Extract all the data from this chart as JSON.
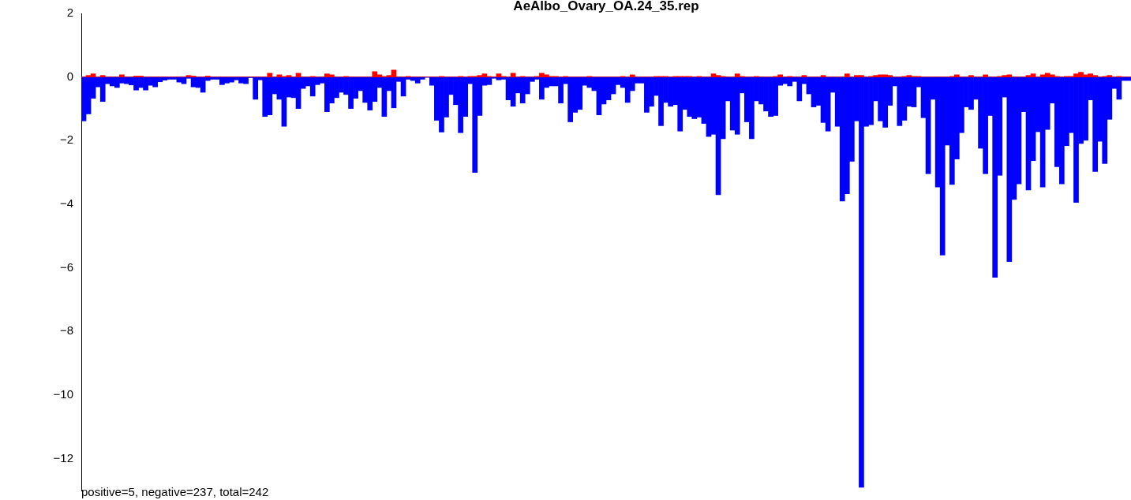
{
  "chart_data": {
    "type": "bar",
    "title": "AeAlbo_Ovary_OA.24_35.rep",
    "annotations": [
      "positive=5, negative=237, total=242"
    ],
    "categories": [
      null,
      null,
      null,
      null,
      null,
      null,
      null,
      null,
      null,
      null,
      null,
      null,
      null,
      null,
      null,
      null,
      null,
      null,
      null,
      null,
      null,
      null,
      null,
      null,
      null,
      null,
      null,
      null,
      null,
      null,
      null,
      null,
      null,
      null,
      null,
      null,
      null,
      null,
      null,
      null,
      null,
      null,
      null,
      null,
      null,
      null,
      null,
      null,
      null,
      null,
      null,
      null,
      null,
      null,
      null,
      null,
      null,
      null,
      null,
      null,
      null,
      null,
      null,
      null,
      null,
      null,
      null,
      null,
      null,
      null,
      null,
      null,
      null,
      null,
      null,
      null,
      null,
      null,
      null,
      null,
      null,
      null,
      null,
      null,
      null,
      null,
      null,
      null,
      null,
      null,
      null,
      null,
      null,
      null,
      null,
      null,
      null,
      null,
      null,
      null,
      null,
      null,
      null,
      null,
      null,
      null,
      null,
      null,
      null,
      null,
      null,
      null,
      null,
      null,
      null,
      null,
      null,
      null,
      null,
      null,
      null,
      null,
      null,
      null,
      null,
      null,
      null,
      null,
      null,
      null,
      null,
      null,
      null,
      null,
      null,
      null,
      null,
      null,
      null,
      null,
      null,
      null,
      null,
      null,
      null,
      null,
      null,
      null,
      null,
      null,
      null,
      null,
      null,
      null,
      null,
      null,
      null,
      null,
      null,
      null,
      null,
      null,
      null,
      null,
      null,
      null,
      null,
      null,
      null,
      null,
      null,
      null,
      null,
      null,
      null,
      null,
      null,
      null,
      null,
      null,
      null,
      null,
      null,
      null,
      null,
      null,
      null,
      null,
      null,
      null,
      null,
      null,
      null,
      null,
      null,
      null,
      null,
      null,
      null,
      null,
      null,
      null,
      null,
      null,
      null,
      null,
      null,
      null,
      null,
      null,
      null,
      null,
      null,
      null,
      null,
      null,
      null,
      null,
      null,
      null
    ],
    "series": [
      {
        "color": "#ff0000",
        "values": [
          0,
          0.05,
          0.1,
          0,
          0.05,
          0,
          0,
          0,
          0.07,
          0,
          0,
          0.03,
          0.03,
          0,
          0,
          0,
          0,
          0,
          0,
          0,
          0,
          0,
          0.05,
          0.03,
          0,
          0,
          0.03,
          0,
          0,
          0,
          0,
          0,
          0,
          0,
          0,
          0,
          0,
          0,
          0,
          0.12,
          0,
          0.07,
          0.02,
          0.05,
          0,
          0.12,
          0,
          0,
          0.02,
          0,
          0,
          0.1,
          0.07,
          0,
          0,
          0.02,
          0,
          0,
          0,
          0,
          0,
          0.17,
          0.07,
          0.02,
          0.05,
          0.22,
          0,
          0,
          0.02,
          0,
          0,
          0,
          0,
          0,
          0,
          0.02,
          0,
          0,
          0,
          0.02,
          0,
          0.02,
          0.02,
          0.05,
          0.1,
          0.02,
          0,
          0.1,
          0.02,
          0,
          0.12,
          0,
          0.02,
          0,
          0,
          0.02,
          0.12,
          0.07,
          0.02,
          0.02,
          0,
          0.02,
          0,
          0,
          0,
          0,
          0.02,
          0,
          0,
          0,
          0,
          0,
          0,
          0.02,
          0,
          0.07,
          0,
          0,
          0,
          0,
          0.02,
          0.02,
          0.02,
          0,
          0.02,
          0.02,
          0.02,
          0.02,
          0,
          0.02,
          0,
          0,
          0.1,
          0.05,
          0.02,
          0,
          0,
          0.1,
          0.02,
          0,
          0,
          0.02,
          0,
          0,
          0,
          0.02,
          0.07,
          0,
          0.02,
          0,
          0,
          0.05,
          0,
          0,
          0,
          0.05,
          0,
          0,
          0,
          0,
          0.1,
          0,
          0.05,
          0.05,
          0,
          0.02,
          0.05,
          0.07,
          0.07,
          0.05,
          0,
          0,
          0.02,
          0.05,
          0.02,
          0.02,
          0,
          0,
          0,
          0,
          0,
          0,
          0.02,
          0.07,
          0,
          0,
          0.05,
          0,
          0,
          0.07,
          0,
          0,
          0.02,
          0.05,
          0.07,
          0,
          0,
          0,
          0.05,
          0.1,
          0,
          0.07,
          0.12,
          0.07,
          0.02,
          0,
          0.02,
          0.02,
          0.1,
          0.15,
          0.07,
          0.1,
          0.05,
          0,
          0.02,
          0.05,
          0,
          0.02,
          0,
          0
        ]
      },
      {
        "color": "#0000ff",
        "values": [
          -1.38,
          -1.16,
          -0.67,
          -0.31,
          -0.77,
          -0.21,
          -0.28,
          -0.33,
          -0.19,
          -0.21,
          -0.25,
          -0.41,
          -0.33,
          -0.41,
          -0.26,
          -0.31,
          -0.15,
          -0.1,
          -0.07,
          -0.07,
          -0.16,
          -0.21,
          -0.04,
          -0.31,
          -0.33,
          -0.48,
          -0.11,
          -0.07,
          -0.07,
          -0.24,
          -0.19,
          -0.16,
          -0.09,
          -0.19,
          -0.21,
          -0.02,
          -0.7,
          -0.09,
          -1.24,
          -1.19,
          -0.53,
          -0.7,
          -1.55,
          -0.63,
          -0.65,
          -0.99,
          -0.36,
          -0.28,
          -0.6,
          -0.24,
          -0.19,
          -1.09,
          -0.82,
          -0.65,
          -0.48,
          -0.55,
          -0.99,
          -0.67,
          -0.43,
          -0.8,
          -1.04,
          -0.77,
          -0.33,
          -1.24,
          -0.43,
          -0.97,
          -0.14,
          -0.6,
          -0.07,
          -0.11,
          -0.19,
          -0.07,
          -0.01,
          -0.26,
          -1.36,
          -1.73,
          -1.26,
          -0.55,
          -0.87,
          -1.75,
          -1.24,
          -0.21,
          -3.0,
          -1.21,
          -0.26,
          -0.24,
          -0.04,
          -0.09,
          -0.07,
          -0.72,
          -0.92,
          -0.5,
          -0.82,
          -0.53,
          -0.14,
          -0.07,
          -0.7,
          -0.33,
          -0.28,
          -0.28,
          -0.82,
          -0.21,
          -1.41,
          -1.11,
          -1.02,
          -0.26,
          -0.33,
          -0.43,
          -1.19,
          -0.85,
          -0.72,
          -0.53,
          -0.24,
          -0.33,
          -0.8,
          -0.43,
          -0.19,
          -0.19,
          -1.11,
          -0.92,
          -0.58,
          -1.53,
          -0.8,
          -0.92,
          -0.87,
          -1.7,
          -1.02,
          -1.24,
          -1.31,
          -1.26,
          -1.46,
          -1.87,
          -1.8,
          -3.7,
          -1.94,
          -0.75,
          -1.67,
          -1.8,
          -0.5,
          -1.41,
          -1.94,
          -0.75,
          -0.85,
          -1.07,
          -1.24,
          -1.21,
          -0.26,
          -0.21,
          -0.28,
          -0.14,
          -0.75,
          -0.21,
          -0.53,
          -0.94,
          -0.89,
          -1.43,
          -1.7,
          -0.48,
          -1.55,
          -3.9,
          -3.67,
          -2.65,
          -1.38,
          -12.9,
          -1.55,
          -1.5,
          -0.75,
          -1.38,
          -1.58,
          -0.89,
          -0.28,
          -1.53,
          -1.36,
          -0.92,
          -0.94,
          -0.31,
          -1.28,
          -3.04,
          -0.7,
          -3.46,
          -5.6,
          -2.14,
          -3.38,
          -2.58,
          -1.75,
          -0.94,
          -1.02,
          -0.7,
          -2.24,
          -3.04,
          -1.21,
          -6.3,
          -3.09,
          -0.63,
          -5.8,
          -3.85,
          -3.36,
          -1.09,
          -3.55,
          -2.63,
          -1.72,
          -3.46,
          -1.65,
          -0.82,
          -2.82,
          -3.36,
          -2.16,
          -1.75,
          -3.94,
          -2.09,
          -1.99,
          -0.72,
          -2.97,
          -2.02,
          -2.72,
          -1.33,
          -0.36,
          -0.7,
          -0.11,
          -0.11
        ]
      }
    ],
    "stacked": true,
    "ylim": [
      -13,
      2
    ],
    "yticks": [
      -12,
      -10,
      -8,
      -6,
      -4,
      -2,
      0,
      2
    ],
    "ref_lines": [
      {
        "axis": "y",
        "value": 0,
        "color": "#bebebe"
      }
    ],
    "grid": false,
    "legend": false,
    "tick_labels": "y"
  }
}
